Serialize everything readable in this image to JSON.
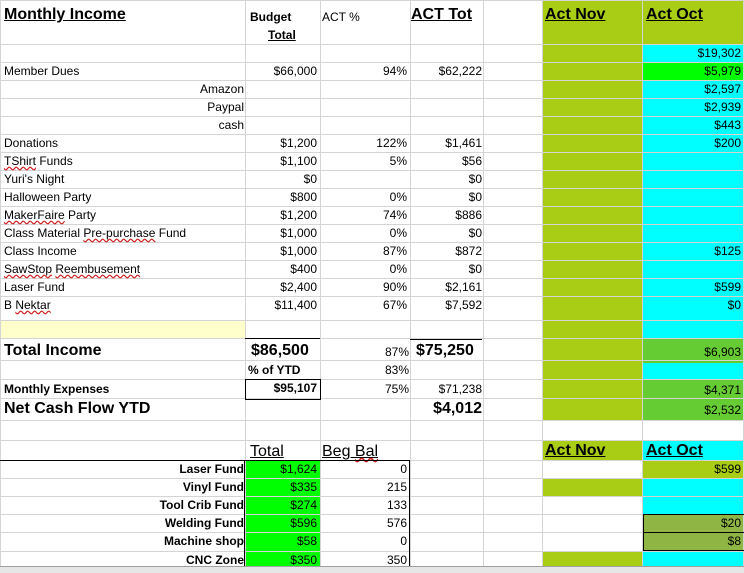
{
  "header": {
    "monthly_income": "Monthly Income",
    "budget": "Budget",
    "total": "Total",
    "act_pct": "ACT %",
    "act_tot": "ACT Tot",
    "act_nov": "Act Nov",
    "act_oct": "Act Oct"
  },
  "act_oct_top": "$19,302",
  "income_rows": [
    {
      "label": "Member Dues",
      "budget": "$66,000",
      "pct": "94%",
      "act": "$62,222",
      "oct": "$5,979"
    },
    {
      "label": "Amazon",
      "oct": "$2,597"
    },
    {
      "label": "Paypal",
      "oct": "$2,939"
    },
    {
      "label": "cash",
      "oct": "$443"
    },
    {
      "label": "Donations",
      "budget": "$1,200",
      "pct": "122%",
      "act": "$1,461",
      "oct": "$200"
    },
    {
      "label": "TShirt Funds",
      "budget": "$1,100",
      "pct": "5%",
      "act": "$56"
    },
    {
      "label": "Yuri's Night",
      "budget": "$0",
      "act": "$0"
    },
    {
      "label": "Halloween Party",
      "budget": "$800",
      "pct": "0%",
      "act": "$0"
    },
    {
      "label": "MakerFaire Party",
      "budget": "$1,200",
      "pct": "74%",
      "act": "$886"
    },
    {
      "label": "Class Material Pre-purchase Fund",
      "budget": "$1,000",
      "pct": "0%",
      "act": "$0"
    },
    {
      "label": "Class Income",
      "budget": "$1,000",
      "pct": "87%",
      "act": "$872",
      "oct": "$125"
    },
    {
      "label": "SawStop Reembusement",
      "budget": "$400",
      "pct": "0%",
      "act": "$0"
    },
    {
      "label": "Laser Fund",
      "budget": "$2,400",
      "pct": "90%",
      "act": "$2,161",
      "oct": "$599"
    },
    {
      "label": "B Nektar",
      "budget": "$11,400",
      "pct": "67%",
      "act": "$7,592",
      "oct": "$0"
    }
  ],
  "summary": {
    "total_income_label": "Total Income",
    "total_income_budget": "$86,500",
    "total_income_pct": "87%",
    "total_income_act": "$75,250",
    "total_income_oct": "$6,903",
    "pct_of_ytd_label": "% of YTD",
    "pct_of_ytd": "83%",
    "expenses_label": "Monthly Expenses",
    "expenses_budget": "$95,107",
    "expenses_pct": "75%",
    "expenses_act": "$71,238",
    "expenses_oct": "$4,371",
    "net_label": "Net Cash Flow YTD",
    "net_act": "$4,012",
    "net_oct": "$2,532"
  },
  "funds_header": {
    "total": "Total",
    "beg_bal": "Beg Bal",
    "act_nov": "Act Nov",
    "act_oct": "Act Oct"
  },
  "funds": [
    {
      "label": "Laser Fund",
      "total": "$1,624",
      "beg": "0",
      "oct": "$599"
    },
    {
      "label": "Vinyl Fund",
      "total": "$335",
      "beg": "215"
    },
    {
      "label": "Tool Crib Fund",
      "total": "$274",
      "beg": "133"
    },
    {
      "label": "Welding Fund",
      "total": "$596",
      "beg": "576",
      "oct": "$20"
    },
    {
      "label": "Machine shop",
      "total": "$58",
      "beg": "0",
      "oct": "$8"
    },
    {
      "label": "CNC Zone",
      "total": "$350",
      "beg": "350"
    }
  ],
  "colors": {
    "nov_green": "#a9cd15",
    "oct_cyan": "#00ffff",
    "bright_green": "#00ff00",
    "mid_green": "#66cc33",
    "olive_green": "#8fb544",
    "cream": "#ffffcc"
  }
}
